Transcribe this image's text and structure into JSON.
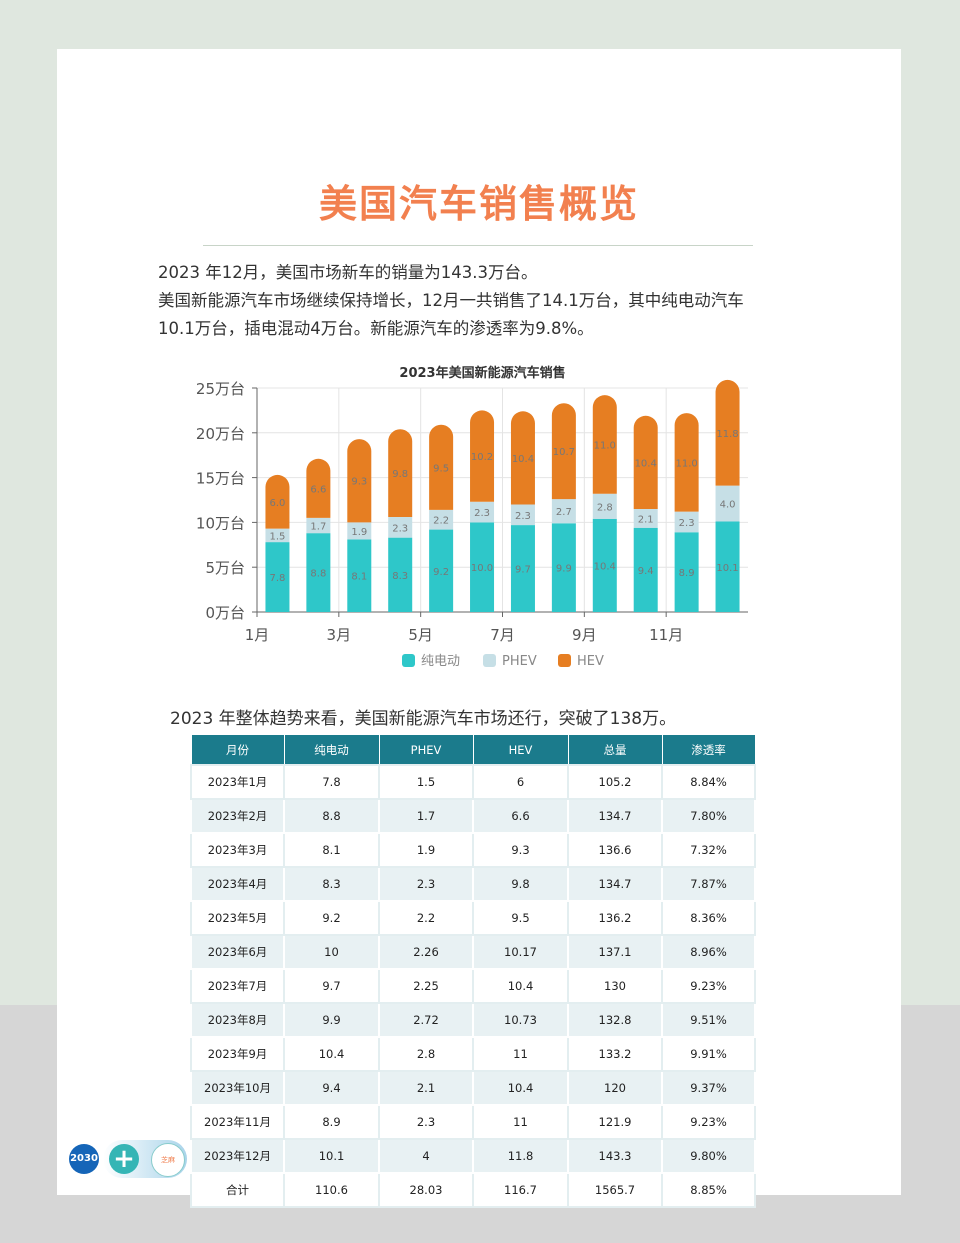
{
  "title": "美国汽车销售概览",
  "paragraph1": "2023 年12月，美国市场新车的销量为143.3万台。",
  "paragraph2": "美国新能源汽车市场继续保持增长，12月一共销售了14.1万台，其中纯电动汽车10.1万台，插电混动4万台。新能源汽车的渗透率为9.8%。",
  "summary": "2023 年整体趋势来看，美国新能源汽车市场还行，突破了138万。",
  "chart_data": {
    "type": "bar",
    "stacked": true,
    "title": "2023年美国新能源汽车销售",
    "categories": [
      "1月",
      "2月",
      "3月",
      "4月",
      "5月",
      "6月",
      "7月",
      "8月",
      "9月",
      "10月",
      "11月",
      "12月"
    ],
    "x_tick_labels": [
      "1月",
      "3月",
      "5月",
      "7月",
      "9月",
      "11月"
    ],
    "y_tick_labels": [
      "0万台",
      "5万台",
      "10万台",
      "15万台",
      "20万台",
      "25万台"
    ],
    "ylim": [
      0,
      25
    ],
    "grid": true,
    "legend_position": "bottom",
    "series": [
      {
        "name": "纯电动",
        "color": "#2ec7c9",
        "values": [
          7.8,
          8.8,
          8.1,
          8.3,
          9.2,
          10.0,
          9.7,
          9.9,
          10.4,
          9.4,
          8.9,
          10.1
        ],
        "labels": [
          "7.8",
          "8.8",
          "8.1",
          "8.3",
          "9.2",
          "10.0",
          "9.7",
          "9.9",
          "10.4",
          "9.4",
          "8.9",
          "10.1"
        ]
      },
      {
        "name": "PHEV",
        "color": "#c6dfe6",
        "values": [
          1.5,
          1.7,
          1.9,
          2.3,
          2.2,
          2.3,
          2.3,
          2.7,
          2.8,
          2.1,
          2.3,
          4.0
        ],
        "labels": [
          "1.5",
          "1.7",
          "1.9",
          "2.3",
          "2.2",
          "2.3",
          "2.3",
          "2.7",
          "2.8",
          "2.1",
          "2.3",
          "4.0"
        ]
      },
      {
        "name": "HEV",
        "color": "#e67e22",
        "values": [
          6.0,
          6.6,
          9.3,
          9.8,
          9.5,
          10.2,
          10.4,
          10.7,
          11.0,
          10.4,
          11.0,
          11.8
        ],
        "labels": [
          "6.0",
          "6.6",
          "9.3",
          "9.8",
          "9.5",
          "10.2",
          "10.4",
          "10.7",
          "11.0",
          "10.4",
          "11.0",
          "11.8"
        ]
      }
    ]
  },
  "table": {
    "headers": [
      "月份",
      "纯电动",
      "PHEV",
      "HEV",
      "总量",
      "渗透率"
    ],
    "rows": [
      [
        "2023年1月",
        "7.8",
        "1.5",
        "6",
        "105.2",
        "8.84%"
      ],
      [
        "2023年2月",
        "8.8",
        "1.7",
        "6.6",
        "134.7",
        "7.80%"
      ],
      [
        "2023年3月",
        "8.1",
        "1.9",
        "9.3",
        "136.6",
        "7.32%"
      ],
      [
        "2023年4月",
        "8.3",
        "2.3",
        "9.8",
        "134.7",
        "7.87%"
      ],
      [
        "2023年5月",
        "9.2",
        "2.2",
        "9.5",
        "136.2",
        "8.36%"
      ],
      [
        "2023年6月",
        "10",
        "2.26",
        "10.17",
        "137.1",
        "8.96%"
      ],
      [
        "2023年7月",
        "9.7",
        "2.25",
        "10.4",
        "130",
        "9.23%"
      ],
      [
        "2023年8月",
        "9.9",
        "2.72",
        "10.73",
        "132.8",
        "9.51%"
      ],
      [
        "2023年9月",
        "10.4",
        "2.8",
        "11",
        "133.2",
        "9.91%"
      ],
      [
        "2023年10月",
        "9.4",
        "2.1",
        "10.4",
        "120",
        "9.37%"
      ],
      [
        "2023年11月",
        "8.9",
        "2.3",
        "11",
        "121.9",
        "9.23%"
      ],
      [
        "2023年12月",
        "10.1",
        "4",
        "11.8",
        "143.3",
        "9.80%"
      ],
      [
        "合计",
        "110.6",
        "28.03",
        "116.7",
        "1565.7",
        "8.85%"
      ]
    ]
  },
  "logos": [
    "2030",
    "+",
    "芝麻"
  ]
}
